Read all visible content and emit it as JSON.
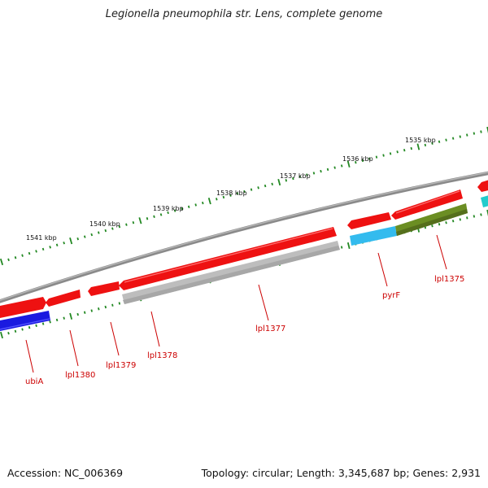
{
  "title": "Legionella pneumophila str. Lens, complete genome",
  "accession": "Accession: NC_006369",
  "summary": "Topology: circular; Length: 3,345,687 bp; Genes: 2,931",
  "kbp_labels": [
    "1535 kbp",
    "1536 kbp",
    "1537 kbp",
    "1538 kbp",
    "1539 kbp",
    "1540 kbp",
    "1541 kbp"
  ],
  "genes": [
    {
      "name": "ubiA",
      "strand": "-",
      "track": "lower",
      "color": "#1a1ae0"
    },
    {
      "name": "lpl1380",
      "strand": "+",
      "track": "upper",
      "color": "#ee1111"
    },
    {
      "name": "lpl1379",
      "strand": "+",
      "track": "upper",
      "color": "#ee1111"
    },
    {
      "name": "lpl1378",
      "strand": "+",
      "track": "upper",
      "color": "#ee1111"
    },
    {
      "name": "lpl1377",
      "strand": "+",
      "track": "upper",
      "color": "#ee1111"
    },
    {
      "name": "pyrF",
      "strand": "+",
      "track": "upper",
      "color": "#ee1111"
    },
    {
      "name": "lpl1375",
      "strand": "+",
      "track": "upper",
      "color": "#ee1111"
    }
  ],
  "colors": {
    "backbone": "#8a8a8a",
    "red_gene": "#ee1111",
    "blue_gene": "#1a1ae0",
    "gray_band": "#bdbdbd",
    "cyan_band": "#33bbee",
    "olive_band": "#6b8e23",
    "teal_band": "#22cccc",
    "ticks": "#228822",
    "label_text": "#cc0000"
  }
}
